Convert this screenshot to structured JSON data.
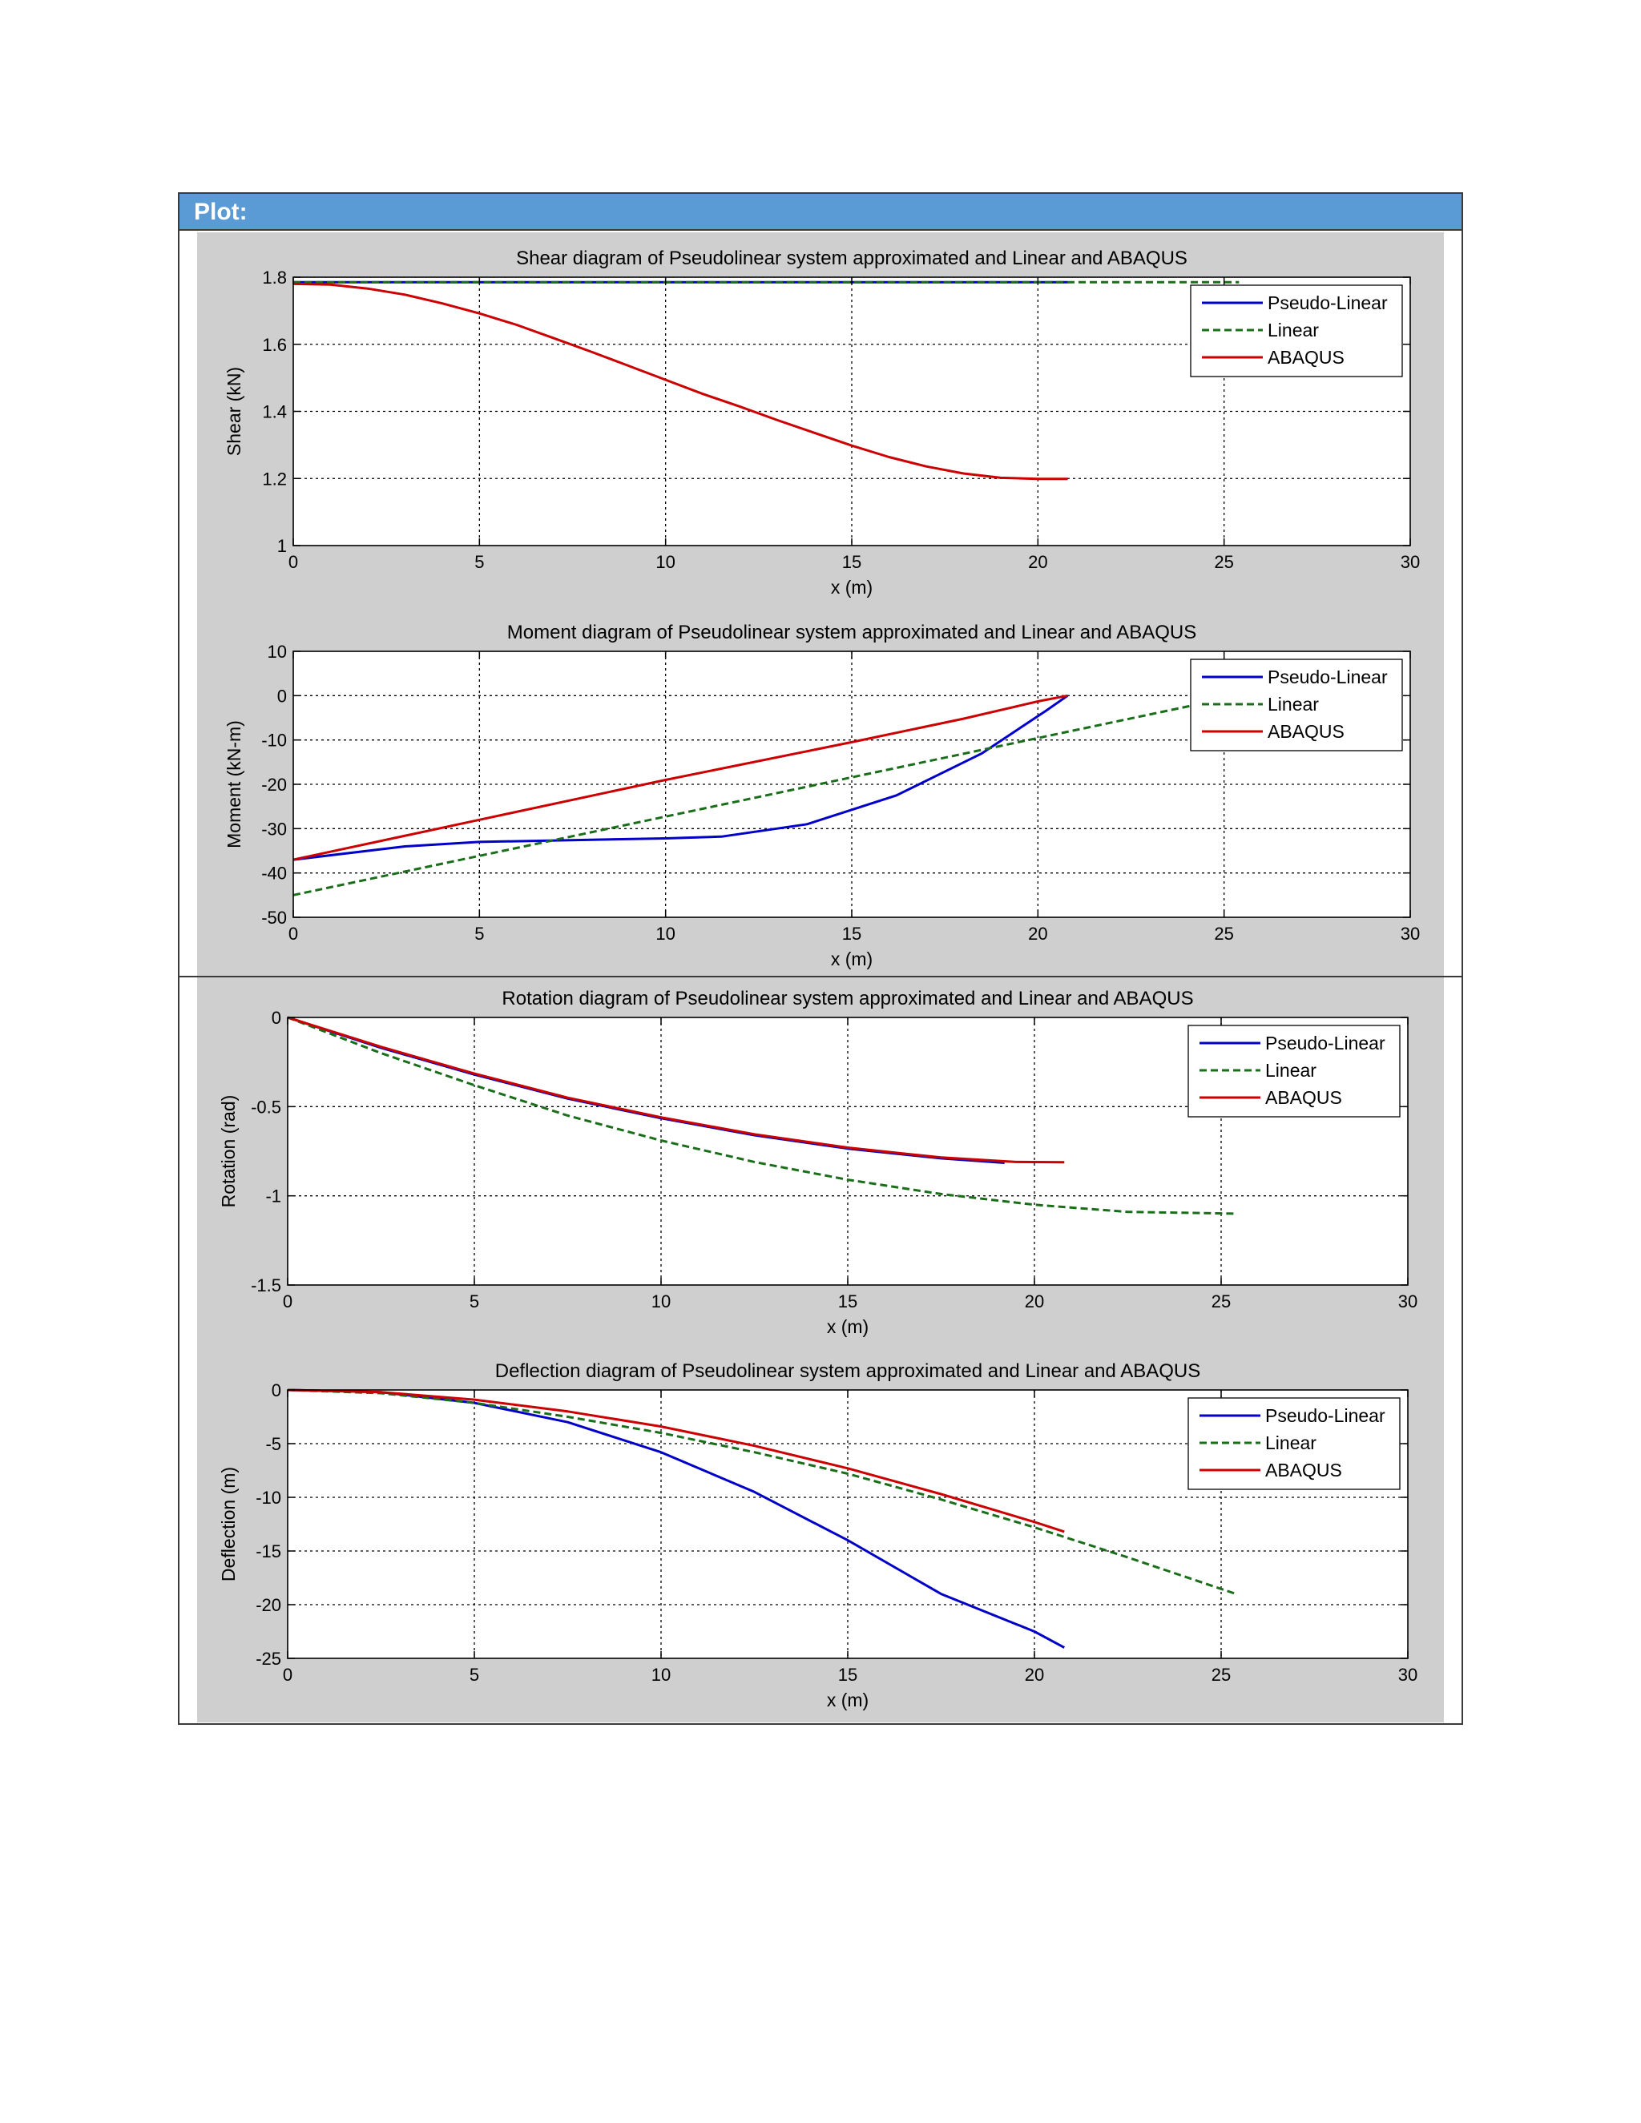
{
  "page": {
    "section_title": "Plot:"
  },
  "chart_data": [
    {
      "type": "line",
      "title": "Shear diagram of Pseudolinear system approximated and Linear and ABAQUS",
      "xlabel": "x (m)",
      "ylabel": "Shear (kN)",
      "xlim": [
        0,
        30
      ],
      "ylim": [
        1,
        1.8
      ],
      "xticks": [
        0,
        5,
        10,
        15,
        20,
        25,
        30
      ],
      "yticks": [
        1,
        1.2,
        1.4,
        1.6,
        1.8
      ],
      "ytick_labels": [
        "1",
        "1.2",
        "1.4",
        "1.6",
        "1.8"
      ],
      "grid": true,
      "legend_position": "top-right",
      "series": [
        {
          "name": "Pseudo-Linear",
          "color": "#0000c8",
          "style": "solid",
          "x": [
            0,
            20.8
          ],
          "y": [
            1.785,
            1.785
          ]
        },
        {
          "name": "Linear",
          "color": "#1a6e1a",
          "style": "dashed",
          "x": [
            0,
            25.4
          ],
          "y": [
            1.785,
            1.785
          ]
        },
        {
          "name": "ABAQUS",
          "color": "#cc0000",
          "style": "solid",
          "x": [
            0,
            1,
            2,
            3,
            4,
            5,
            6,
            7,
            8,
            9,
            10,
            11,
            12,
            13,
            14,
            15,
            16,
            17,
            18,
            19,
            20,
            20.8
          ],
          "y": [
            1.78,
            1.778,
            1.766,
            1.748,
            1.722,
            1.692,
            1.658,
            1.618,
            1.578,
            1.536,
            1.494,
            1.452,
            1.414,
            1.374,
            1.336,
            1.298,
            1.264,
            1.236,
            1.215,
            1.202,
            1.199,
            1.199
          ]
        }
      ]
    },
    {
      "type": "line",
      "title": "Moment diagram of Pseudolinear system approximated and Linear and ABAQUS",
      "xlabel": "x (m)",
      "ylabel": "Moment (kN-m)",
      "xlim": [
        0,
        30
      ],
      "ylim": [
        -50,
        10
      ],
      "xticks": [
        0,
        5,
        10,
        15,
        20,
        25,
        30
      ],
      "yticks": [
        -50,
        -40,
        -30,
        -20,
        -10,
        0,
        10
      ],
      "ytick_labels": [
        "-50",
        "-40",
        "-30",
        "-20",
        "-10",
        "0",
        "10"
      ],
      "grid": true,
      "legend_position": "top-right",
      "series": [
        {
          "name": "Pseudo-Linear",
          "color": "#0000c8",
          "style": "solid",
          "x": [
            0,
            3,
            5,
            8,
            10,
            11.5,
            13.8,
            16.2,
            18.5,
            20.2,
            20.8
          ],
          "y": [
            -37,
            -34,
            -33,
            -32.5,
            -32.2,
            -31.8,
            -29,
            -22.5,
            -13,
            -3.5,
            0
          ]
        },
        {
          "name": "Linear",
          "color": "#1a6e1a",
          "style": "dashed",
          "x": [
            0,
            25.4
          ],
          "y": [
            -45,
            0
          ]
        },
        {
          "name": "ABAQUS",
          "color": "#cc0000",
          "style": "solid",
          "x": [
            0,
            5,
            10,
            15,
            18,
            20,
            20.8
          ],
          "y": [
            -37,
            -28,
            -19,
            -10.5,
            -5.2,
            -1.3,
            0
          ]
        }
      ]
    },
    {
      "type": "line",
      "title": "Rotation diagram of Pseudolinear system approximated and Linear and ABAQUS",
      "xlabel": "x (m)",
      "ylabel": "Rotation (rad)",
      "xlim": [
        0,
        30
      ],
      "ylim": [
        -1.5,
        0
      ],
      "xticks": [
        0,
        5,
        10,
        15,
        20,
        25,
        30
      ],
      "yticks": [
        -1.5,
        -1,
        -0.5,
        0
      ],
      "ytick_labels": [
        "-1.5",
        "-1",
        "-0.5",
        "0"
      ],
      "grid": true,
      "legend_position": "top-right",
      "series": [
        {
          "name": "Pseudo-Linear",
          "color": "#0000c8",
          "style": "solid",
          "x": [
            0,
            2.5,
            5,
            7.5,
            10,
            12.5,
            15,
            17.5,
            19.2
          ],
          "y": [
            0,
            -0.17,
            -0.32,
            -0.455,
            -0.565,
            -0.66,
            -0.735,
            -0.79,
            -0.815
          ]
        },
        {
          "name": "Linear",
          "color": "#1a6e1a",
          "style": "dashed",
          "x": [
            0,
            2.5,
            5,
            7.5,
            10,
            12.5,
            15,
            17.5,
            20,
            22.5,
            25.4
          ],
          "y": [
            0,
            -0.2,
            -0.38,
            -0.55,
            -0.69,
            -0.81,
            -0.91,
            -0.99,
            -1.05,
            -1.09,
            -1.1
          ]
        },
        {
          "name": "ABAQUS",
          "color": "#cc0000",
          "style": "solid",
          "x": [
            0,
            2.5,
            5,
            7.5,
            10,
            12.5,
            15,
            17.5,
            19.5,
            20.8
          ],
          "y": [
            0,
            -0.165,
            -0.315,
            -0.45,
            -0.56,
            -0.655,
            -0.73,
            -0.785,
            -0.81,
            -0.812
          ]
        }
      ]
    },
    {
      "type": "line",
      "title": "Deflection diagram of Pseudolinear system approximated and Linear and ABAQUS",
      "xlabel": "x (m)",
      "ylabel": "Deflection (m)",
      "xlim": [
        0,
        30
      ],
      "ylim": [
        -25,
        0
      ],
      "xticks": [
        0,
        5,
        10,
        15,
        20,
        25,
        30
      ],
      "yticks": [
        -25,
        -20,
        -15,
        -10,
        -5,
        0
      ],
      "ytick_labels": [
        "-25",
        "-20",
        "-15",
        "-10",
        "-5",
        "0"
      ],
      "grid": true,
      "legend_position": "top-right",
      "series": [
        {
          "name": "Pseudo-Linear",
          "color": "#0000c8",
          "style": "solid",
          "x": [
            0,
            2.5,
            5,
            7.5,
            10,
            12.5,
            15,
            17.5,
            20,
            20.8
          ],
          "y": [
            0,
            -0.2,
            -1.2,
            -3,
            -5.8,
            -9.5,
            -14,
            -19,
            -22.5,
            -24
          ]
        },
        {
          "name": "Linear",
          "color": "#1a6e1a",
          "style": "dashed",
          "x": [
            0,
            2.5,
            5,
            7.5,
            10,
            12.5,
            15,
            17.5,
            20,
            22.5,
            25.4
          ],
          "y": [
            0,
            -0.3,
            -1.2,
            -2.5,
            -4,
            -5.8,
            -7.8,
            -10.2,
            -12.8,
            -15.6,
            -19
          ]
        },
        {
          "name": "ABAQUS",
          "color": "#cc0000",
          "style": "solid",
          "x": [
            0,
            2.5,
            5,
            7.5,
            10,
            12.5,
            15,
            17.5,
            20,
            20.8
          ],
          "y": [
            0,
            -0.2,
            -0.9,
            -2,
            -3.4,
            -5.2,
            -7.3,
            -9.7,
            -12.3,
            -13.2
          ]
        }
      ]
    }
  ]
}
